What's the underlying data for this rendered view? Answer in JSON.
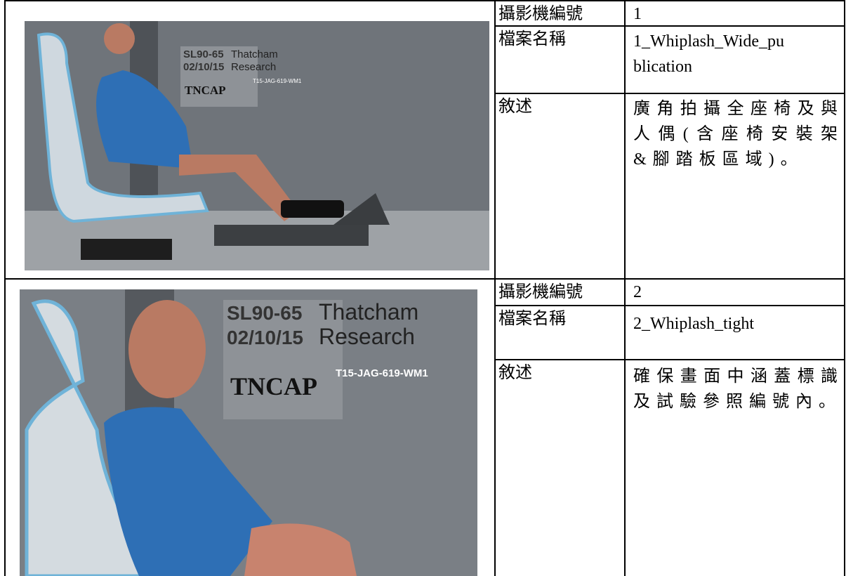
{
  "rows": [
    {
      "image_text": {
        "code": "SL90-65",
        "date": "02/10/15",
        "brand_1": "Thatcham",
        "brand_2": "Research",
        "logo": "TNCAP",
        "ref": "T15-JAG-619-WM1"
      },
      "camera_label": "攝影機編號",
      "camera": "1",
      "file_label": "檔案名稱",
      "file": "1_Whiplash_Wide_publication",
      "desc_label": "敘述",
      "desc": "廣角拍攝全座椅及與人偶(含座椅安裝架&腳踏板區域)。"
    },
    {
      "image_text": {
        "code": "SL90-65",
        "date": "02/10/15",
        "brand_1": "Thatcham",
        "brand_2": "Research",
        "logo": "TNCAP",
        "ref": "T15-JAG-619-WM1"
      },
      "camera_label": "攝影機編號",
      "camera": "2",
      "file_label": "檔案名稱",
      "file": "2_Whiplash_tight",
      "desc_label": "敘述",
      "desc": "確保畫面中涵蓋標識及試驗參照編號內。"
    }
  ]
}
